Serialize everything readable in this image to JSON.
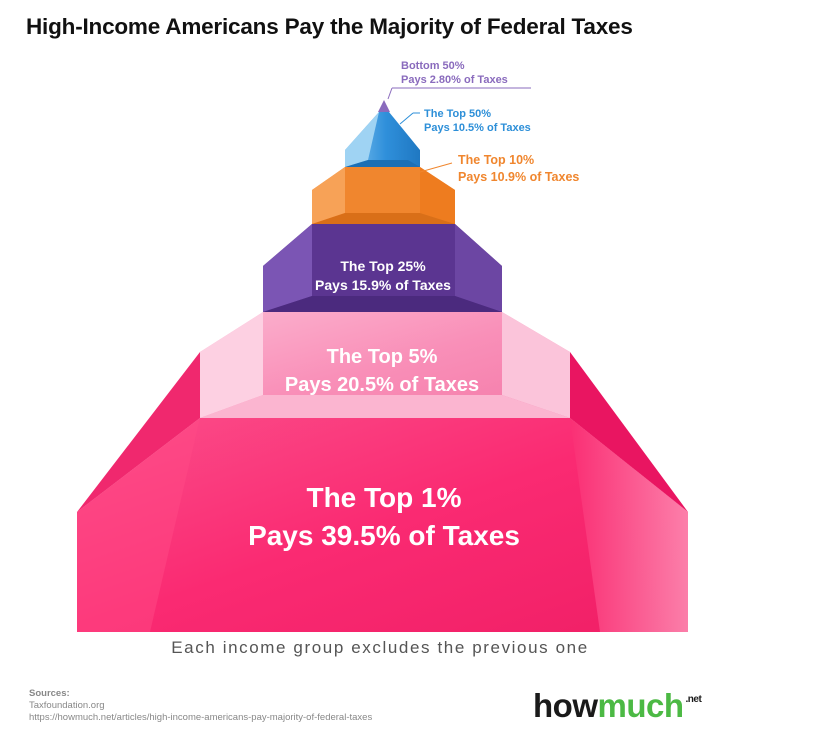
{
  "chart_data": {
    "type": "pyramid",
    "title": "High-Income Americans Pay the Majority of Federal Taxes",
    "tiers": [
      {
        "line1": "Bottom 50%",
        "line2": "Pays 2.80% of Taxes",
        "group": "Bottom 50%",
        "value": 2.8,
        "color": "#8a6bbd"
      },
      {
        "line1": "The Top 50%",
        "line2": "Pays 10.5% of Taxes",
        "group": "The Top 50%",
        "value": 10.5,
        "color": "#2d8fd8"
      },
      {
        "line1": "The Top 10%",
        "line2": "Pays 10.9% of Taxes",
        "group": "The Top 10%",
        "value": 10.9,
        "color": "#f0862e"
      },
      {
        "line1": "The Top 25%",
        "line2": "Pays 15.9% of Taxes",
        "group": "The Top 25%",
        "value": 15.9,
        "color": "#5b3591"
      },
      {
        "line1": "The Top 5%",
        "line2": "Pays 20.5% of Taxes",
        "group": "The Top 5%",
        "value": 20.5,
        "color": "#f990b8"
      },
      {
        "line1": "The Top 1%",
        "line2": "Pays 39.5% of Taxes",
        "group": "The Top 1%",
        "value": 39.5,
        "color": "#fa2a72"
      }
    ],
    "footnote": "Each income group excludes the previous one"
  },
  "sources": {
    "heading": "Sources:",
    "lines": [
      "Taxfoundation.org",
      "https://howmuch.net/articles/high-income-americans-pay-majority-of-federal-taxes"
    ]
  },
  "logo": {
    "how": "how",
    "much": "much",
    "net": ".net"
  }
}
